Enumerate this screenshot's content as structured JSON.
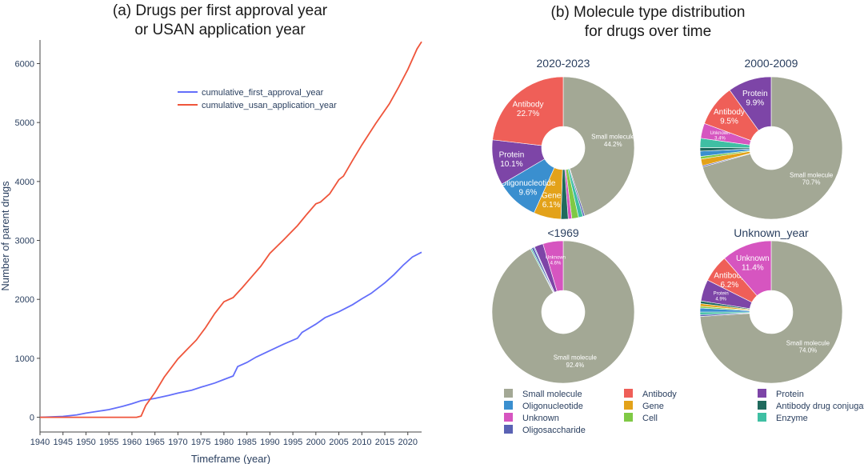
{
  "titles": {
    "a_line1": "(a) Drugs per first approval year",
    "a_line2": "or USAN application year",
    "b_line1": "(b) Molecule type distribution",
    "b_line2": "for drugs over time"
  },
  "chart_data": [
    {
      "type": "line",
      "title": "(a) Drugs per first approval year or USAN application year",
      "xlabel": "Timeframe (year)",
      "ylabel": "Number of parent drugs",
      "xlim": [
        1940,
        2023
      ],
      "ylim": [
        -250,
        6400
      ],
      "xticks": [
        1940,
        1945,
        1950,
        1955,
        1960,
        1965,
        1970,
        1975,
        1980,
        1985,
        1990,
        1995,
        2000,
        2005,
        2010,
        2015,
        2020
      ],
      "yticks": [
        0,
        1000,
        2000,
        3000,
        4000,
        5000,
        6000
      ],
      "legend_position": "top-center",
      "series": [
        {
          "name": "cumulative_first_approval_year",
          "color": "#636efa",
          "points": [
            [
              1940,
              0
            ],
            [
              1945,
              15
            ],
            [
              1948,
              40
            ],
            [
              1950,
              70
            ],
            [
              1955,
              130
            ],
            [
              1958,
              185
            ],
            [
              1960,
              230
            ],
            [
              1962,
              280
            ],
            [
              1965,
              320
            ],
            [
              1968,
              370
            ],
            [
              1970,
              410
            ],
            [
              1973,
              460
            ],
            [
              1975,
              510
            ],
            [
              1978,
              580
            ],
            [
              1980,
              640
            ],
            [
              1982,
              700
            ],
            [
              1983,
              860
            ],
            [
              1985,
              930
            ],
            [
              1987,
              1020
            ],
            [
              1990,
              1130
            ],
            [
              1993,
              1240
            ],
            [
              1996,
              1340
            ],
            [
              1997,
              1440
            ],
            [
              2000,
              1580
            ],
            [
              2002,
              1690
            ],
            [
              2005,
              1790
            ],
            [
              2008,
              1910
            ],
            [
              2010,
              2010
            ],
            [
              2012,
              2100
            ],
            [
              2015,
              2280
            ],
            [
              2017,
              2420
            ],
            [
              2019,
              2580
            ],
            [
              2021,
              2720
            ],
            [
              2023,
              2800
            ]
          ]
        },
        {
          "name": "cumulative_usan_application_year",
          "color": "#ef553b",
          "points": [
            [
              1940,
              0
            ],
            [
              1950,
              0
            ],
            [
              1955,
              0
            ],
            [
              1960,
              0
            ],
            [
              1961,
              0
            ],
            [
              1962,
              20
            ],
            [
              1963,
              200
            ],
            [
              1965,
              420
            ],
            [
              1967,
              680
            ],
            [
              1970,
              990
            ],
            [
              1972,
              1150
            ],
            [
              1974,
              1310
            ],
            [
              1976,
              1520
            ],
            [
              1978,
              1760
            ],
            [
              1980,
              1960
            ],
            [
              1982,
              2030
            ],
            [
              1984,
              2200
            ],
            [
              1986,
              2380
            ],
            [
              1988,
              2560
            ],
            [
              1990,
              2780
            ],
            [
              1993,
              3010
            ],
            [
              1996,
              3250
            ],
            [
              1998,
              3440
            ],
            [
              2000,
              3620
            ],
            [
              2001,
              3650
            ],
            [
              2003,
              3790
            ],
            [
              2005,
              4030
            ],
            [
              2006,
              4090
            ],
            [
              2008,
              4360
            ],
            [
              2010,
              4620
            ],
            [
              2013,
              4980
            ],
            [
              2016,
              5320
            ],
            [
              2018,
              5600
            ],
            [
              2020,
              5900
            ],
            [
              2022,
              6250
            ],
            [
              2023,
              6370
            ]
          ]
        }
      ]
    },
    {
      "type": "pie",
      "title": "(b) Molecule type distribution for drugs over time",
      "categories": [
        "Small molecule",
        "Antibody",
        "Protein",
        "Oligonucleotide",
        "Gene",
        "Antibody drug conjugate",
        "Unknown",
        "Cell",
        "Enzyme",
        "Oligosaccharide"
      ],
      "colors": {
        "Small molecule": "#a3a895",
        "Antibody": "#ef5f58",
        "Protein": "#7d45a7",
        "Oligonucleotide": "#3a8fcf",
        "Gene": "#e3a21a",
        "Antibody drug conjugate": "#1f6a5d",
        "Unknown": "#d655c0",
        "Cell": "#7fc945",
        "Enzyme": "#3fbfa3",
        "Oligosaccharide": "#5a62b4"
      },
      "pies": [
        {
          "title": "2020-2023",
          "slices": [
            {
              "label": "Small molecule",
              "value": 44.2
            },
            {
              "label": "Oligosaccharide",
              "value": 0.4
            },
            {
              "label": "Enzyme",
              "value": 1.0
            },
            {
              "label": "Cell",
              "value": 1.5
            },
            {
              "label": "Unknown",
              "value": 0.8
            },
            {
              "label": "Antibody drug conjugate",
              "value": 1.6
            },
            {
              "label": "Gene",
              "value": 6.1
            },
            {
              "label": "Oligonucleotide",
              "value": 9.6
            },
            {
              "label": "Protein",
              "value": 10.1
            },
            {
              "label": "Antibody",
              "value": 22.7
            }
          ]
        },
        {
          "title": "2000-2009",
          "slices": [
            {
              "label": "Small molecule",
              "value": 70.7
            },
            {
              "label": "Oligosaccharide",
              "value": 0.3
            },
            {
              "label": "Gene",
              "value": 1.5
            },
            {
              "label": "Cell",
              "value": 0.6
            },
            {
              "label": "Oligonucleotide",
              "value": 1.2
            },
            {
              "label": "Antibody drug conjugate",
              "value": 0.8
            },
            {
              "label": "Enzyme",
              "value": 2.1
            },
            {
              "label": "Unknown",
              "value": 3.4
            },
            {
              "label": "Antibody",
              "value": 9.5
            },
            {
              "label": "Protein",
              "value": 9.9
            }
          ]
        },
        {
          "title": "<1969",
          "slices": [
            {
              "label": "Small molecule",
              "value": 92.4
            },
            {
              "label": "Enzyme",
              "value": 0.3
            },
            {
              "label": "Oligosaccharide",
              "value": 0.5
            },
            {
              "label": "Oligonucleotide",
              "value": 0.2
            },
            {
              "label": "Protein",
              "value": 2.0
            },
            {
              "label": "Unknown",
              "value": 4.6
            }
          ]
        },
        {
          "title": "Unknown_year",
          "slices": [
            {
              "label": "Small molecule",
              "value": 74.0
            },
            {
              "label": "Oligosaccharide",
              "value": 0.4
            },
            {
              "label": "Enzyme",
              "value": 0.6
            },
            {
              "label": "Oligonucleotide",
              "value": 0.9
            },
            {
              "label": "Cell",
              "value": 0.4
            },
            {
              "label": "Gene",
              "value": 0.6
            },
            {
              "label": "Antibody drug conjugate",
              "value": 0.6
            },
            {
              "label": "Protein",
              "value": 4.9
            },
            {
              "label": "Antibody",
              "value": 6.2
            },
            {
              "label": "Unknown",
              "value": 11.4
            }
          ]
        }
      ],
      "legend": [
        "Small molecule",
        "Antibody",
        "Protein",
        "Oligonucleotide",
        "Gene",
        "Antibody drug conjugate",
        "Unknown",
        "Cell",
        "Enzyme",
        "Oligosaccharide"
      ]
    }
  ]
}
